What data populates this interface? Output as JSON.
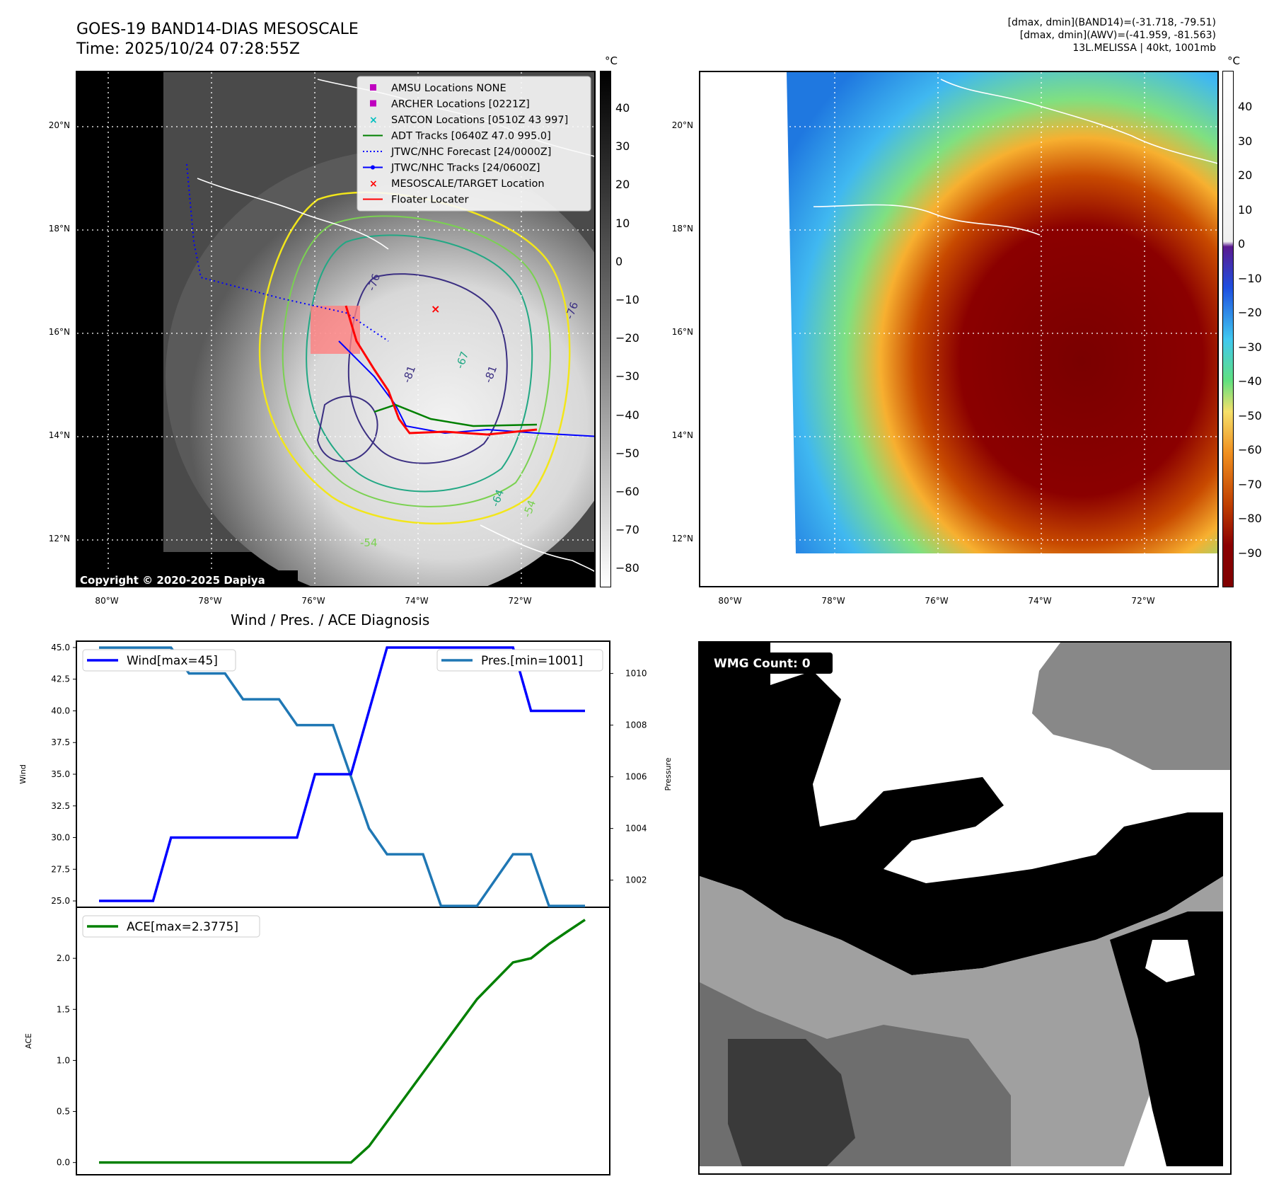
{
  "header": {
    "title_line1": "GOES-19 BAND14-DIAS MESOSCALE",
    "title_line2": "Time: 2025/10/24 07:28:55Z",
    "info_line1": "[dmax, dmin](BAND14)=(-31.718, -79.51)",
    "info_line2": "[dmax, dmin](AWV)=(-41.959, -81.563)",
    "info_line3": "13L.MELISSA | 40kt, 1001mb"
  },
  "map_left": {
    "copyright": "Copyright © 2020-2025 Dapiya",
    "lon_labels": [
      "80°W",
      "78°W",
      "76°W",
      "74°W",
      "72°W"
    ],
    "lat_labels": [
      "20°N",
      "18°N",
      "16°N",
      "14°N",
      "12°N"
    ],
    "contour_labels": [
      "-76",
      "-81",
      "-67",
      "-64",
      "-54",
      "-54",
      "-76",
      "-81"
    ],
    "colorbar": {
      "unit": "°C",
      "ticks": [
        "40",
        "30",
        "20",
        "10",
        "0",
        "−10",
        "−20",
        "−30",
        "−40",
        "−50",
        "−60",
        "−70",
        "−80"
      ]
    },
    "legend": [
      {
        "label": "AMSU Locations NONE",
        "color": "#bf00bf",
        "kind": "square"
      },
      {
        "label": "ARCHER Locations [0221Z]",
        "color": "#bf00bf",
        "kind": "square"
      },
      {
        "label": "SATCON Locations [0510Z 43 997]",
        "color": "#00bfbf",
        "kind": "x"
      },
      {
        "label": "ADT Tracks [0640Z 47.0 995.0]",
        "color": "#008000",
        "kind": "line"
      },
      {
        "label": "JTWC/NHC Forecast [24/0000Z]",
        "color": "#0000ff",
        "kind": "dotted"
      },
      {
        "label": "JTWC/NHC Tracks [24/0600Z]",
        "color": "#0000ff",
        "kind": "line-dot"
      },
      {
        "label": "MESOSCALE/TARGET Location",
        "color": "#ff0000",
        "kind": "x"
      },
      {
        "label": "Floater Locater",
        "color": "#ff0000",
        "kind": "line"
      }
    ],
    "colors": {
      "track_red": "#ff0000",
      "track_blue": "#0000ff",
      "track_green": "#008000",
      "contour_yellow": "#f2e61a",
      "contour_green": "#7ad151",
      "contour_teal": "#22a884",
      "contour_navy": "#3b2f82"
    }
  },
  "map_right": {
    "lon_labels": [
      "80°W",
      "78°W",
      "76°W",
      "74°W",
      "72°W"
    ],
    "lat_labels": [
      "20°N",
      "18°N",
      "16°N",
      "14°N",
      "12°N"
    ],
    "colorbar": {
      "unit": "°C",
      "ticks": [
        "40",
        "30",
        "20",
        "10",
        "0",
        "−10",
        "−20",
        "−30",
        "−40",
        "−50",
        "−60",
        "−70",
        "−80",
        "−90"
      ]
    }
  },
  "wmg": {
    "label": "WMG Count: 0"
  },
  "chart_data": [
    {
      "type": "line",
      "title": "Wind / Pres. / ACE Diagnosis",
      "ylabel": "Wind",
      "y2label": "Pressure",
      "ylim": [
        24.5,
        45.5
      ],
      "y2lim": [
        1000.95,
        1011.25
      ],
      "yticks": [
        "25.0",
        "27.5",
        "30.0",
        "32.5",
        "35.0",
        "37.5",
        "40.0",
        "42.5",
        "45.0"
      ],
      "y2ticks": [
        "1002",
        "1004",
        "1006",
        "1008",
        "1010"
      ],
      "x": [
        0,
        1,
        2,
        3,
        4,
        5,
        6,
        7,
        8,
        9,
        10,
        11,
        12,
        13,
        14,
        15,
        16,
        17,
        18,
        19,
        20,
        21,
        22,
        23,
        24,
        25,
        26,
        27
      ],
      "series": [
        {
          "name": "Wind[max=45]",
          "color": "#0000ff",
          "axis": "left",
          "values": [
            25,
            25,
            25,
            25,
            30,
            30,
            30,
            30,
            30,
            30,
            30,
            30,
            35,
            35,
            35,
            40,
            45,
            45,
            45,
            45,
            45,
            45,
            45,
            45,
            40,
            40,
            40,
            40
          ]
        },
        {
          "name": "Pres.[min=1001]",
          "color": "#1f77b4",
          "axis": "right",
          "values": [
            1011,
            1011,
            1011,
            1011,
            1011,
            1010,
            1010,
            1010,
            1009,
            1009,
            1009,
            1008,
            1008,
            1008,
            1006,
            1004,
            1003,
            1003,
            1003,
            1001,
            1001,
            1001,
            1002,
            1003,
            1003,
            1001,
            1001,
            1001
          ]
        }
      ]
    },
    {
      "type": "line",
      "ylabel": "ACE",
      "ylim": [
        -0.12,
        2.5
      ],
      "yticks": [
        "0.0",
        "0.5",
        "1.0",
        "1.5",
        "2.0"
      ],
      "x": [
        0,
        1,
        2,
        3,
        4,
        5,
        6,
        7,
        8,
        9,
        10,
        11,
        12,
        13,
        14,
        15,
        16,
        17,
        18,
        19,
        20,
        21,
        22,
        23,
        24,
        25,
        26,
        27
      ],
      "series": [
        {
          "name": "ACE[max=2.3775]",
          "color": "#008000",
          "values": [
            0,
            0,
            0,
            0,
            0,
            0,
            0,
            0,
            0,
            0,
            0,
            0,
            0,
            0,
            0,
            0.16,
            0.4,
            0.64,
            0.88,
            1.12,
            1.36,
            1.6,
            1.78,
            1.96,
            2.0,
            2.14,
            2.26,
            2.3775
          ]
        }
      ]
    }
  ]
}
